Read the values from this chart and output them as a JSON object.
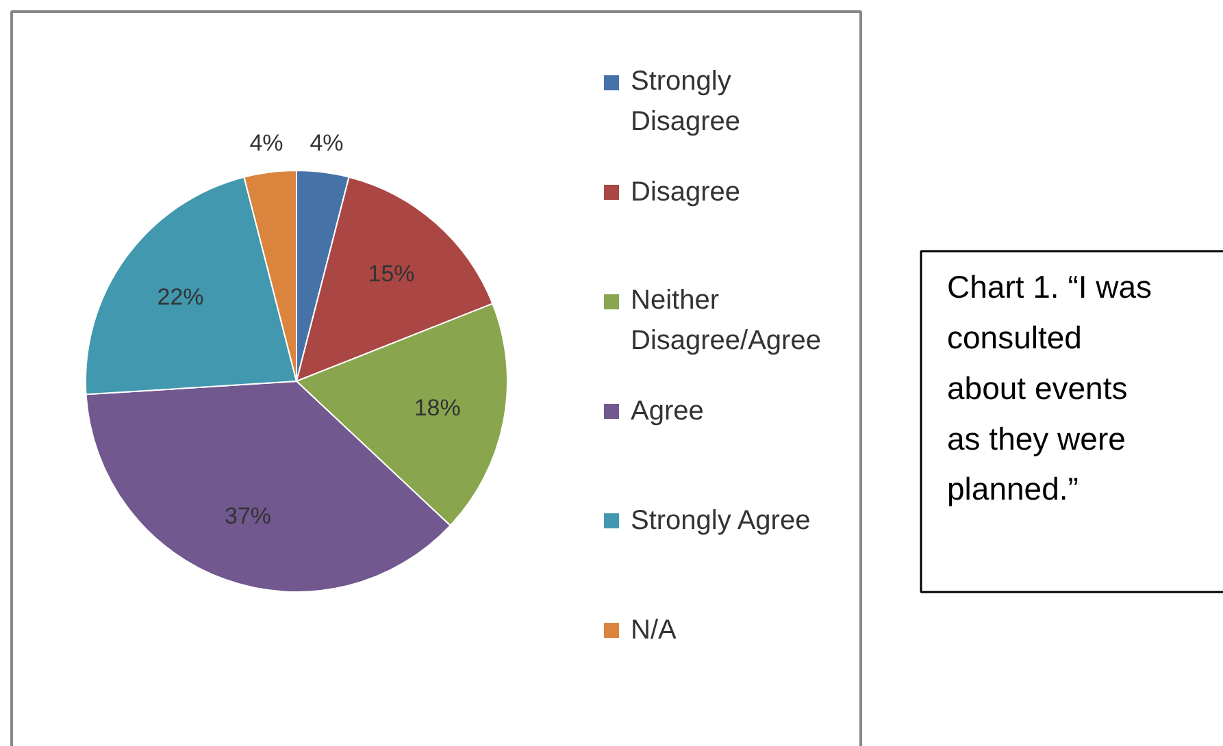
{
  "chart_data": {
    "type": "pie",
    "categories": [
      "Strongly Disagree",
      "Disagree",
      "Neither Disagree/Agree",
      "Agree",
      "Strongly Agree",
      "N/A"
    ],
    "values": [
      4,
      15,
      18,
      37,
      22,
      4
    ],
    "colors": [
      "#4572a7",
      "#aa4643",
      "#89a54e",
      "#71588f",
      "#4198af",
      "#db843d"
    ],
    "value_labels": [
      "4%",
      "15%",
      "18%",
      "37%",
      "22%",
      "4%"
    ],
    "legend": "right",
    "annotations": [
      "Chart 1. “I was\nconsulted\nabout events\nas they were\nplanned.”"
    ]
  }
}
